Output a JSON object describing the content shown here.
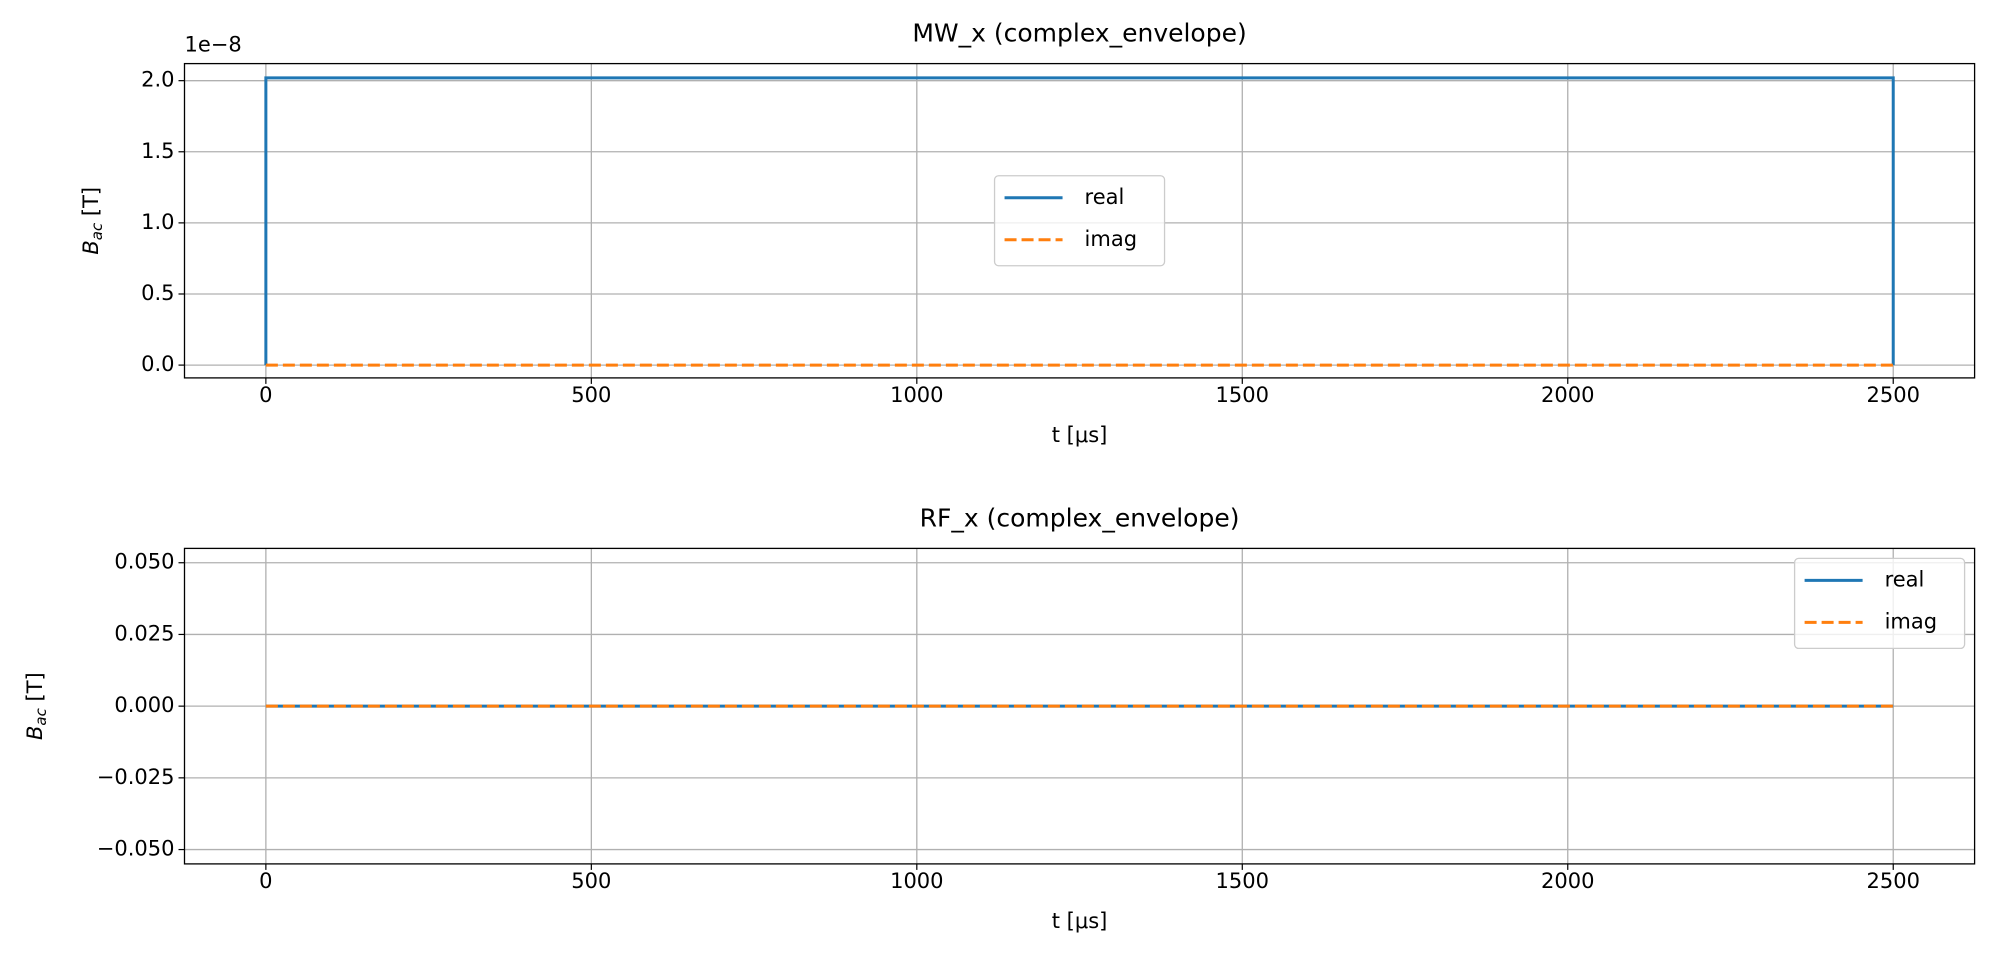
{
  "chart_data": [
    {
      "type": "line",
      "title": "MW_x (complex_envelope)",
      "x_label": "t [μs]",
      "y_label": "B",
      "y_label_sub": "ac",
      "y_label_unit": " [T]",
      "offset_label": "1e−8",
      "x": [
        0,
        0,
        2500,
        2500
      ],
      "series": [
        {
          "name": "real",
          "color": "#1f77b4",
          "linestyle": "solid",
          "values": [
            0,
            2.02,
            2.02,
            0
          ]
        },
        {
          "name": "imag",
          "color": "#ff7f0e",
          "linestyle": "dashed",
          "values": [
            0,
            0,
            0,
            0
          ]
        }
      ],
      "xlim": [
        -125,
        2625
      ],
      "xticks": [
        0,
        500,
        1000,
        1500,
        2000,
        2500
      ],
      "ylim": [
        -0.09,
        2.12
      ],
      "yticks": [
        {
          "value": 0,
          "label": "0.0"
        },
        {
          "value": 0.5,
          "label": "0.5"
        },
        {
          "value": 1,
          "label": "1.0"
        },
        {
          "value": 1.5,
          "label": "1.5"
        },
        {
          "value": 2,
          "label": "2.0"
        }
      ],
      "grid": true,
      "legend": "center"
    },
    {
      "type": "line",
      "title": "RF_x (complex_envelope)",
      "x_label": "t [μs]",
      "y_label": "B",
      "y_label_sub": "ac",
      "y_label_unit": " [T]",
      "x": [
        0,
        2500
      ],
      "series": [
        {
          "name": "real",
          "color": "#1f77b4",
          "linestyle": "solid",
          "values": [
            0,
            0
          ]
        },
        {
          "name": "imag",
          "color": "#ff7f0e",
          "linestyle": "dashed",
          "values": [
            0,
            0
          ]
        }
      ],
      "xlim": [
        -125,
        2625
      ],
      "xticks": [
        0,
        500,
        1000,
        1500,
        2000,
        2500
      ],
      "ylim": [
        -0.055,
        0.055
      ],
      "yticks": [
        {
          "value": -0.05,
          "label": "−0.050"
        },
        {
          "value": -0.025,
          "label": "−0.025"
        },
        {
          "value": 0,
          "label": "0.000"
        },
        {
          "value": 0.025,
          "label": "0.025"
        },
        {
          "value": 0.05,
          "label": "0.050"
        }
      ],
      "grid": true,
      "legend": "upper right"
    }
  ]
}
